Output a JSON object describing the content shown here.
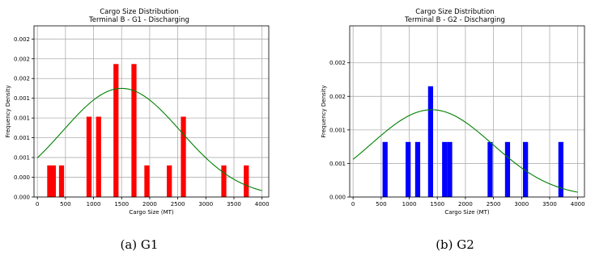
{
  "chart_data": [
    {
      "type": "bar",
      "panel": "G1",
      "caption": "(a) G1",
      "title": "Cargo Size Distribution",
      "subtitle": "Terminal B - G1 - Discharging",
      "xlabel": "Cargo Size (MT)",
      "ylabel": "Frequency Density",
      "xlim": [
        -60,
        4120
      ],
      "ylim": [
        0,
        0.0026
      ],
      "xticks": [
        0,
        500,
        1000,
        1500,
        2000,
        2500,
        3000,
        3500,
        4000
      ],
      "yticks": [
        {
          "v": 0.0,
          "label": "0.000"
        },
        {
          "v": 0.0003,
          "label": "0.000"
        },
        {
          "v": 0.0006,
          "label": "0.001"
        },
        {
          "v": 0.0009,
          "label": "0.001"
        },
        {
          "v": 0.0012,
          "label": "0.001"
        },
        {
          "v": 0.0015,
          "label": "0.001"
        },
        {
          "v": 0.0018,
          "label": "0.002"
        },
        {
          "v": 0.0021,
          "label": "0.002"
        },
        {
          "v": 0.0024,
          "label": "0.002"
        }
      ],
      "bar_color": "#ff0000",
      "bar_width": 90,
      "bars": [
        {
          "x": 220,
          "y": 0.00048
        },
        {
          "x": 285,
          "y": 0.00048
        },
        {
          "x": 430,
          "y": 0.00048
        },
        {
          "x": 920,
          "y": 0.00122
        },
        {
          "x": 1090,
          "y": 0.00122
        },
        {
          "x": 1400,
          "y": 0.00202
        },
        {
          "x": 1720,
          "y": 0.00202
        },
        {
          "x": 1950,
          "y": 0.00048
        },
        {
          "x": 2350,
          "y": 0.00048
        },
        {
          "x": 2600,
          "y": 0.00122
        },
        {
          "x": 3320,
          "y": 0.00048
        },
        {
          "x": 3720,
          "y": 0.00048
        }
      ],
      "curve": {
        "color": "#008000",
        "mean": 1500,
        "std": 1050,
        "peak": 0.00165,
        "x_range": [
          0,
          4000
        ]
      }
    },
    {
      "type": "bar",
      "panel": "G2",
      "caption": "(b) G2",
      "title": "Cargo Size Distribution",
      "subtitle": "Terminal B - G2 - Discharging",
      "xlabel": "Cargo Size (MT)",
      "ylabel": "Frequency Density",
      "xlim": [
        -60,
        4120
      ],
      "ylim": [
        0,
        0.00255
      ],
      "xticks": [
        0,
        500,
        1000,
        1500,
        2000,
        2500,
        3000,
        3500,
        4000
      ],
      "yticks": [
        {
          "v": 0.0,
          "label": "0.000"
        },
        {
          "v": 0.0005,
          "label": "0.001"
        },
        {
          "v": 0.001,
          "label": "0.001"
        },
        {
          "v": 0.0015,
          "label": "0.002"
        },
        {
          "v": 0.002,
          "label": "0.002"
        }
      ],
      "bar_color": "#0000ff",
      "bar_width": 90,
      "bars": [
        {
          "x": 570,
          "y": 0.00082
        },
        {
          "x": 980,
          "y": 0.00082
        },
        {
          "x": 1150,
          "y": 0.00082
        },
        {
          "x": 1380,
          "y": 0.00165
        },
        {
          "x": 1630,
          "y": 0.00082
        },
        {
          "x": 1720,
          "y": 0.00082
        },
        {
          "x": 2440,
          "y": 0.00082
        },
        {
          "x": 2750,
          "y": 0.00082
        },
        {
          "x": 3070,
          "y": 0.00082
        },
        {
          "x": 3700,
          "y": 0.00082
        }
      ],
      "curve": {
        "color": "#008000",
        "mean": 1400,
        "std": 1080,
        "peak": 0.0013,
        "x_range": [
          0,
          4000
        ]
      }
    }
  ]
}
